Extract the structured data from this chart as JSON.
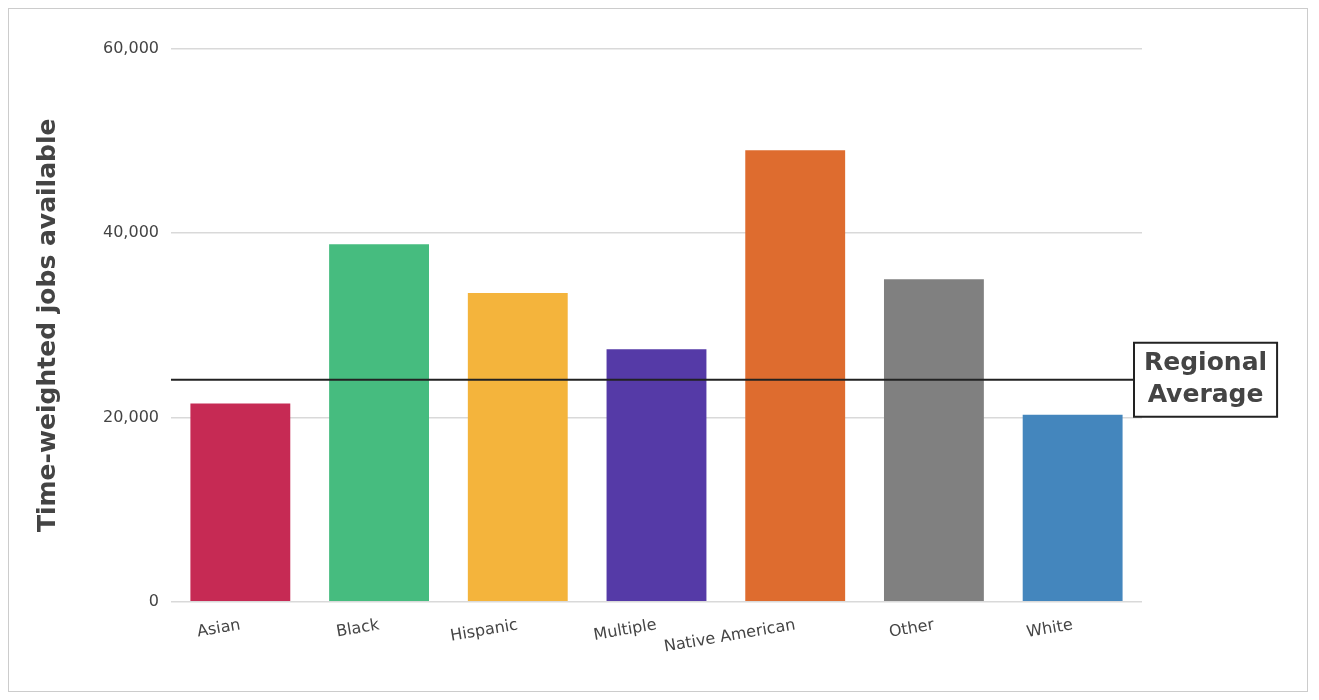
{
  "chart_data": {
    "type": "bar",
    "ylabel": "Time-weighted jobs available",
    "categories": [
      "Asian",
      "Black",
      "Hispanic",
      "Multiple",
      "Native American",
      "Other",
      "White"
    ],
    "values": [
      21500,
      38800,
      33500,
      27400,
      49000,
      35000,
      20300
    ],
    "colors": [
      "#c62a54",
      "#46bc7f",
      "#f4b43c",
      "#553aa7",
      "#de6c2f",
      "#808080",
      "#4486bd"
    ],
    "ylim": [
      0,
      60000
    ],
    "yticks": [
      0,
      {
        "value": 20000,
        "label": "20,000"
      },
      {
        "value": 40000,
        "label": "40,000"
      },
      {
        "value": 60000,
        "label": "60,000"
      }
    ],
    "grid": "y",
    "legend": false,
    "ref_lines": [
      {
        "axis": "y",
        "value": 24100,
        "label": "Regional Average",
        "color": "#222222"
      }
    ]
  }
}
